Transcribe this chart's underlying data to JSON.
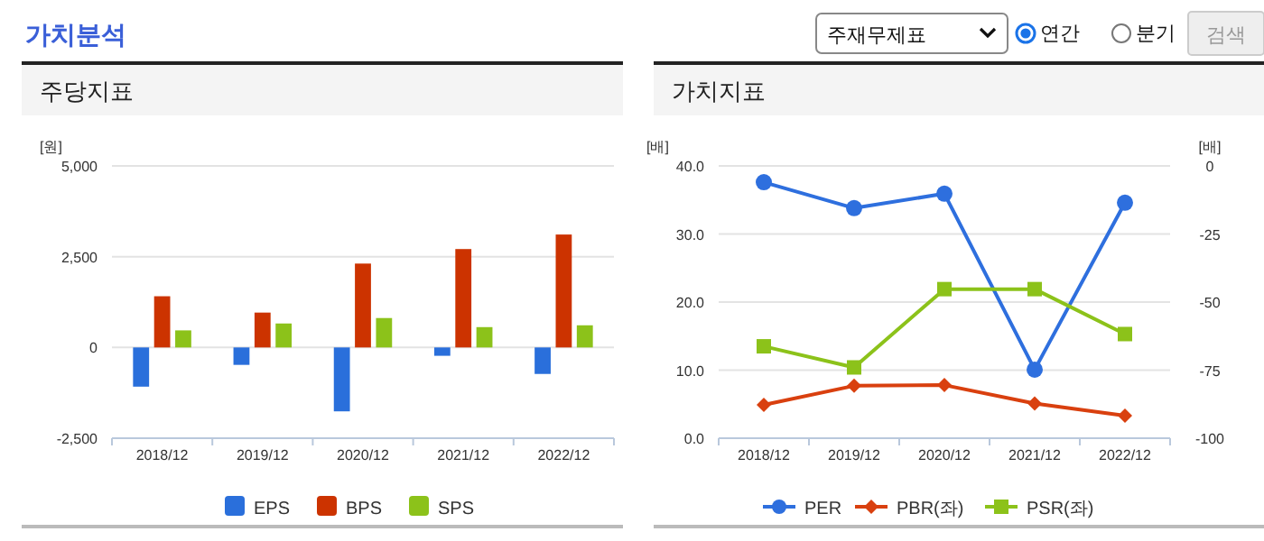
{
  "chart_data": [
    {
      "type": "bar",
      "title": "주당지표",
      "ylabel": "[원]",
      "annotations": [
        "가치분석"
      ],
      "categories": [
        "2018/12",
        "2019/12",
        "2020/12",
        "2021/12",
        "2022/12"
      ],
      "series": [
        {
          "name": "EPS",
          "color": "#2a6fdb",
          "values": [
            -1080,
            -480,
            -1760,
            -230,
            -730
          ]
        },
        {
          "name": "BPS",
          "color": "#cc3300",
          "values": [
            1410,
            960,
            2310,
            2710,
            3110
          ]
        },
        {
          "name": "SPS",
          "color": "#8cc21a",
          "values": [
            470,
            660,
            810,
            560,
            610
          ]
        }
      ],
      "ylim": [
        -2500,
        5000
      ],
      "yticks": [
        {
          "value": -2500,
          "label": "-2,500"
        },
        0,
        {
          "value": 2500,
          "label": "2,500"
        },
        {
          "value": 5000,
          "label": "5,000"
        }
      ],
      "grid": "y",
      "legend": "bottom"
    },
    {
      "type": "line",
      "title": "가치지표",
      "ylabel": "[배]",
      "y2label": "[배]",
      "annotations": [
        "주재무제표",
        "연간",
        "분기",
        "검색"
      ],
      "categories": [
        "2018/12",
        "2019/12",
        "2020/12",
        "2021/12",
        "2022/12"
      ],
      "series": [
        {
          "name": "PER",
          "color": "#2e6fde",
          "axis": "y2",
          "marker": "circle",
          "values": [
            -6.0,
            -15.5,
            -10.2,
            -74.8,
            -13.5
          ]
        },
        {
          "name": "PBR(좌)",
          "color": "#d9400f",
          "marker": "diamond",
          "values": [
            4.9,
            7.7,
            7.8,
            5.1,
            3.3
          ]
        },
        {
          "name": "PSR(좌)",
          "color": "#8cc21a",
          "marker": "square",
          "values": [
            13.5,
            10.4,
            21.9,
            21.9,
            15.3
          ]
        }
      ],
      "ylim": [
        0,
        40
      ],
      "yticks": [
        {
          "value": 0,
          "label": "0.0"
        },
        {
          "value": 10,
          "label": "10.0"
        },
        {
          "value": 20,
          "label": "20.0"
        },
        {
          "value": 30,
          "label": "30.0"
        },
        {
          "value": 40,
          "label": "40.0"
        }
      ],
      "y2lim": [
        -100,
        0
      ],
      "y2ticks": [
        -100,
        -75,
        -50,
        -25,
        0
      ],
      "grid": "y",
      "legend": "bottom"
    }
  ]
}
